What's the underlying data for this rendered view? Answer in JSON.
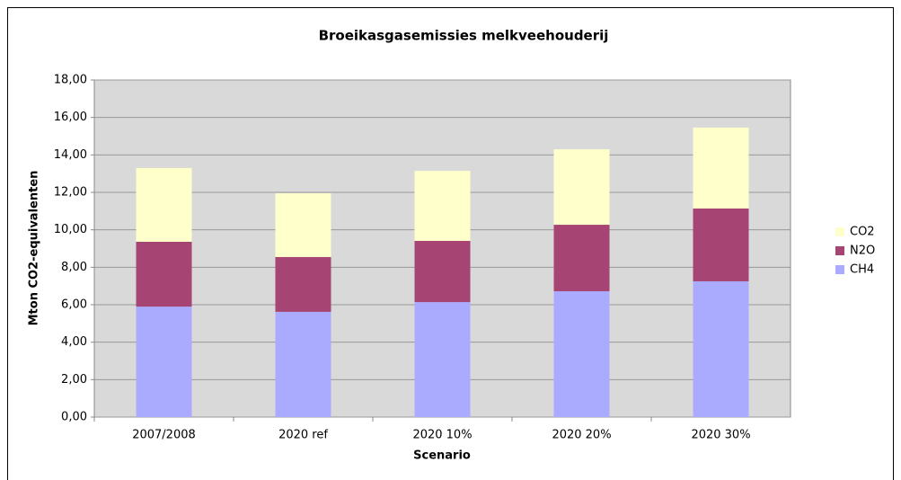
{
  "chart_data": {
    "type": "stacked-bar",
    "title": "Broeikasgasemissies melkveehouderij",
    "x_label": "Scenario",
    "y_label": "Mton CO2-equivalenten",
    "categories": [
      "2007/2008",
      "2020 ref",
      "2020 10%",
      "2020 20%",
      "2020 30%"
    ],
    "series": [
      {
        "name": "CH4",
        "color": "#aaaaff",
        "values": [
          5.9,
          5.62,
          6.14,
          6.72,
          7.25
        ]
      },
      {
        "name": "N2O",
        "color": "#a64474",
        "values": [
          3.46,
          2.93,
          3.27,
          3.55,
          3.89
        ]
      },
      {
        "name": "CO2",
        "color": "#ffffcc",
        "values": [
          3.94,
          3.4,
          3.74,
          4.03,
          4.32
        ]
      }
    ],
    "ylim": [
      0,
      18
    ],
    "yticks": [
      {
        "value": 0,
        "label": "0,00"
      },
      {
        "value": 2,
        "label": "2,00"
      },
      {
        "value": 4,
        "label": "4,00"
      },
      {
        "value": 6,
        "label": "6,00"
      },
      {
        "value": 8,
        "label": "8,00"
      },
      {
        "value": 10,
        "label": "10,00"
      },
      {
        "value": 12,
        "label": "12,00"
      },
      {
        "value": 14,
        "label": "14,00"
      },
      {
        "value": 16,
        "label": "16,00"
      },
      {
        "value": 18,
        "label": "18,00"
      }
    ],
    "grid": true,
    "legend": "right"
  }
}
